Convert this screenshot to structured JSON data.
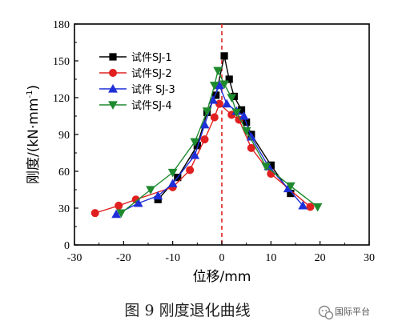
{
  "chart_data": {
    "type": "line",
    "xlabel": "位移/mm",
    "ylabel_main": "刚度/(kN·mm",
    "ylabel_exp": "-1",
    "ylabel_close": ")",
    "xlim": [
      -30,
      30
    ],
    "ylim": [
      0,
      180
    ],
    "xticks": [
      -30,
      -20,
      -10,
      0,
      10,
      20,
      30
    ],
    "yticks": [
      0,
      30,
      60,
      90,
      120,
      150,
      180
    ],
    "reference_line_x": 0,
    "legend_position": "top-left",
    "grid": false,
    "series": [
      {
        "name": "试件SJ-1",
        "color": "#000000",
        "marker": "square",
        "x": [
          -13,
          -9,
          -5,
          -3,
          -1.2,
          0.5,
          1.5,
          2.5,
          4,
          5,
          6,
          10,
          14
        ],
        "y": [
          37,
          55,
          81,
          108,
          122,
          154,
          135,
          121,
          110,
          100,
          90,
          65,
          42
        ]
      },
      {
        "name": "试件SJ-2",
        "color": "#e02020",
        "marker": "circle",
        "x": [
          -25.8,
          -21,
          -17.5,
          -10,
          -6.5,
          -3.5,
          -1.5,
          -0.5,
          2,
          3.5,
          6,
          10,
          18
        ],
        "y": [
          26,
          32,
          37,
          47,
          61,
          86,
          104,
          115,
          106,
          102,
          79,
          58,
          31
        ]
      },
      {
        "name": "试件 SJ-3",
        "color": "#1f2fd8",
        "marker": "triangle-up",
        "x": [
          -21.5,
          -17,
          -13,
          -10,
          -5.5,
          -3.5,
          -1.8,
          -0.5,
          1,
          3,
          4.5,
          6,
          9.5,
          13.5,
          16.5
        ],
        "y": [
          25,
          34,
          40,
          50,
          73,
          98,
          118,
          130,
          115,
          109,
          105,
          88,
          64,
          46,
          32
        ]
      },
      {
        "name": "试件SJ-4",
        "color": "#1e8a2e",
        "marker": "triangle-down",
        "x": [
          -20.5,
          -14.5,
          -10,
          -5.5,
          -3,
          -1.5,
          -0.8,
          0.5,
          2,
          3,
          5,
          9,
          14,
          19.5
        ],
        "y": [
          26,
          45,
          59,
          84,
          109,
          130,
          142,
          131,
          120,
          108,
          93,
          64,
          48,
          31
        ]
      }
    ]
  },
  "caption": "图 9  刚度退化曲线",
  "watermark": "国际平台"
}
